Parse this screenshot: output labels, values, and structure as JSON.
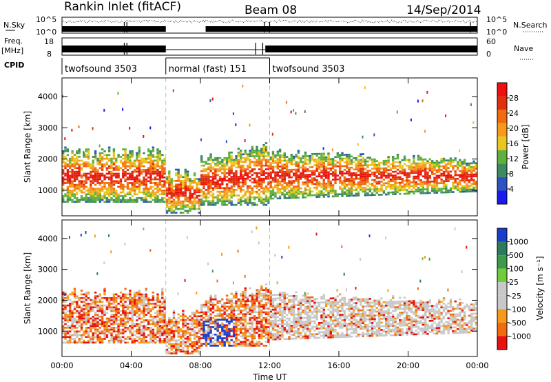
{
  "header": {
    "station": "Rankin Inlet (fitACF)",
    "beam": "Beam 08",
    "date": "14/Sep/2014"
  },
  "top_panels": {
    "nsky_label": "N.Sky",
    "nsky_ticks": [
      "10^5",
      "10^0"
    ],
    "nsearch_label": "N.Search",
    "nsearch_ticks": [
      "10^5",
      "10^0"
    ],
    "freq_label": "Freq.",
    "freq_unit": "[MHz]",
    "freq_ticks": [
      "18",
      "8"
    ],
    "nave_label": "Nave",
    "nave_ticks": [
      "60",
      "0"
    ],
    "cpid_label": "CPID",
    "cpid_segments": [
      {
        "label": "twofsound 3503",
        "start_h": 0,
        "end_h": 6
      },
      {
        "label": "normal (fast) 151",
        "start_h": 6,
        "end_h": 12
      },
      {
        "label": "twofsound 3503",
        "start_h": 12,
        "end_h": 24
      }
    ]
  },
  "colors": {
    "power": [
      "#1a1aee",
      "#2f52c2",
      "#3d8a5e",
      "#5fb03c",
      "#e8c820",
      "#f59a1c",
      "#f06a10",
      "#e03010",
      "#ee1010"
    ],
    "velocity": [
      "#1a3ec9",
      "#2e7a5c",
      "#3d9a4a",
      "#6fcc3a",
      "#c8c8c8",
      "#c8c8c8",
      "#f59a1c",
      "#f06a10",
      "#e81010"
    ]
  },
  "chart_data": [
    {
      "type": "heatmap",
      "name": "power_panel",
      "xlabel": "",
      "ylabel": "Slant Range [km]",
      "xlim": [
        0,
        24
      ],
      "ylim": [
        180,
        4600
      ],
      "x_ticks": [
        0,
        4,
        8,
        12,
        16,
        20,
        24
      ],
      "x_tick_labels": [
        "",
        "",
        "",
        "",
        "",
        "",
        ""
      ],
      "y_ticks": [
        1000,
        2000,
        3000,
        4000
      ],
      "y_tick_labels": [
        "1000",
        "2000",
        "3000",
        "4000"
      ],
      "colorbar_label": "Power [dB]",
      "colorbar_ticks": [
        "28",
        "24",
        "20",
        "16",
        "12",
        "8",
        "4"
      ],
      "dashed_lines_h": [
        6,
        12
      ]
    },
    {
      "type": "heatmap",
      "name": "velocity_panel",
      "xlabel": "Time UT",
      "ylabel": "Slant Range [km]",
      "xlim": [
        0,
        24
      ],
      "ylim": [
        180,
        4600
      ],
      "x_ticks": [
        0,
        4,
        8,
        12,
        16,
        20,
        24
      ],
      "x_tick_labels": [
        "00:00",
        "04:00",
        "08:00",
        "12:00",
        "16:00",
        "20:00",
        "00:00"
      ],
      "y_ticks": [
        1000,
        2000,
        3000,
        4000
      ],
      "y_tick_labels": [
        "1000",
        "2000",
        "3000",
        "4000"
      ],
      "colorbar_label": "Velocity [m s⁻¹]",
      "colorbar_ticks": [
        "1000",
        "500",
        "100",
        "25",
        "-25",
        "-100",
        "-500",
        "-1000"
      ],
      "dashed_lines_h": [
        6,
        12
      ]
    }
  ]
}
